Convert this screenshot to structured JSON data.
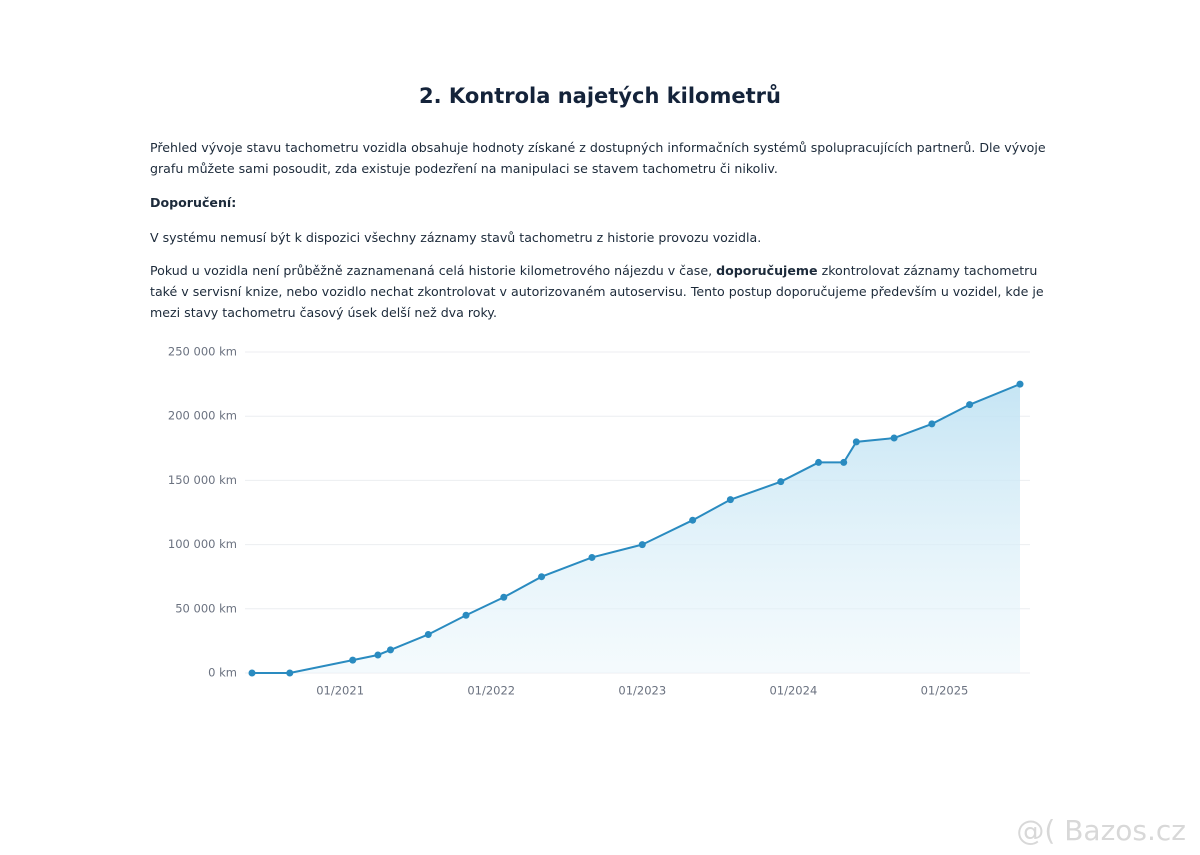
{
  "header": {
    "title": "2. Kontrola najetých kilometrů"
  },
  "paragraphs": [
    [
      "Přehled vývoje stavu tachometru vozidla obsahuje hodnoty získané z dostupných informačních systémů spolupracujících partnerů. Dle vývoje grafu můžete sami posoudit, zda existuje podezření na manipulaci se stavem tachometru či nikoliv."
    ],
    [
      "Doporučení:"
    ],
    [
      "V systému nemusí být k dispozici všechny záznamy stavů tachometru z historie provozu vozidla."
    ],
    [
      "Pokud u vozidla není průběžně zaznamenaná celá historie kilometrového nájezdu v čase, ",
      "doporučujeme",
      " zkontrolovat záznamy tachometru také v servisní knize, nebo vozidlo nechat zkontrolovat v autorizovaném autoservisu. Tento postup doporučujeme především u vozidel, kde je mezi stavy tachometru časový úsek delší než dva roky."
    ]
  ],
  "chart_data": {
    "type": "line",
    "x": [
      "2020-06",
      "2020-09",
      "2021-02",
      "2021-04",
      "2021-05",
      "2021-08",
      "2021-11",
      "2022-02",
      "2022-05",
      "2022-09",
      "2023-01",
      "2023-05",
      "2023-08",
      "2023-12",
      "2024-03",
      "2024-05",
      "2024-06",
      "2024-09",
      "2024-12",
      "2025-03",
      "2025-07"
    ],
    "values": [
      0,
      0,
      10000,
      14000,
      18000,
      30000,
      45000,
      59000,
      75000,
      90000,
      100000,
      119000,
      135000,
      149000,
      164000,
      164000,
      180000,
      183000,
      194000,
      209000,
      225000
    ],
    "color": "#2a8bc0",
    "xlim": [
      "2020-06",
      "2025-07"
    ],
    "xticks": [
      {
        "value": "2021-01",
        "label": "01/2021"
      },
      {
        "value": "2022-01",
        "label": "01/2022"
      },
      {
        "value": "2023-01",
        "label": "01/2023"
      },
      {
        "value": "2024-01",
        "label": "01/2024"
      },
      {
        "value": "2025-01",
        "label": "01/2025"
      }
    ],
    "ylim": [
      0,
      250000
    ],
    "yticks": [
      {
        "value": 0,
        "label": "0 km"
      },
      {
        "value": 50000,
        "label": "50 000 km"
      },
      {
        "value": 100000,
        "label": "100 000 km"
      },
      {
        "value": 150000,
        "label": "150 000 km"
      },
      {
        "value": 200000,
        "label": "200 000 km"
      },
      {
        "value": 250000,
        "label": "250 000 km"
      }
    ],
    "grid": true
  },
  "watermark": "@( Bazos.cz"
}
